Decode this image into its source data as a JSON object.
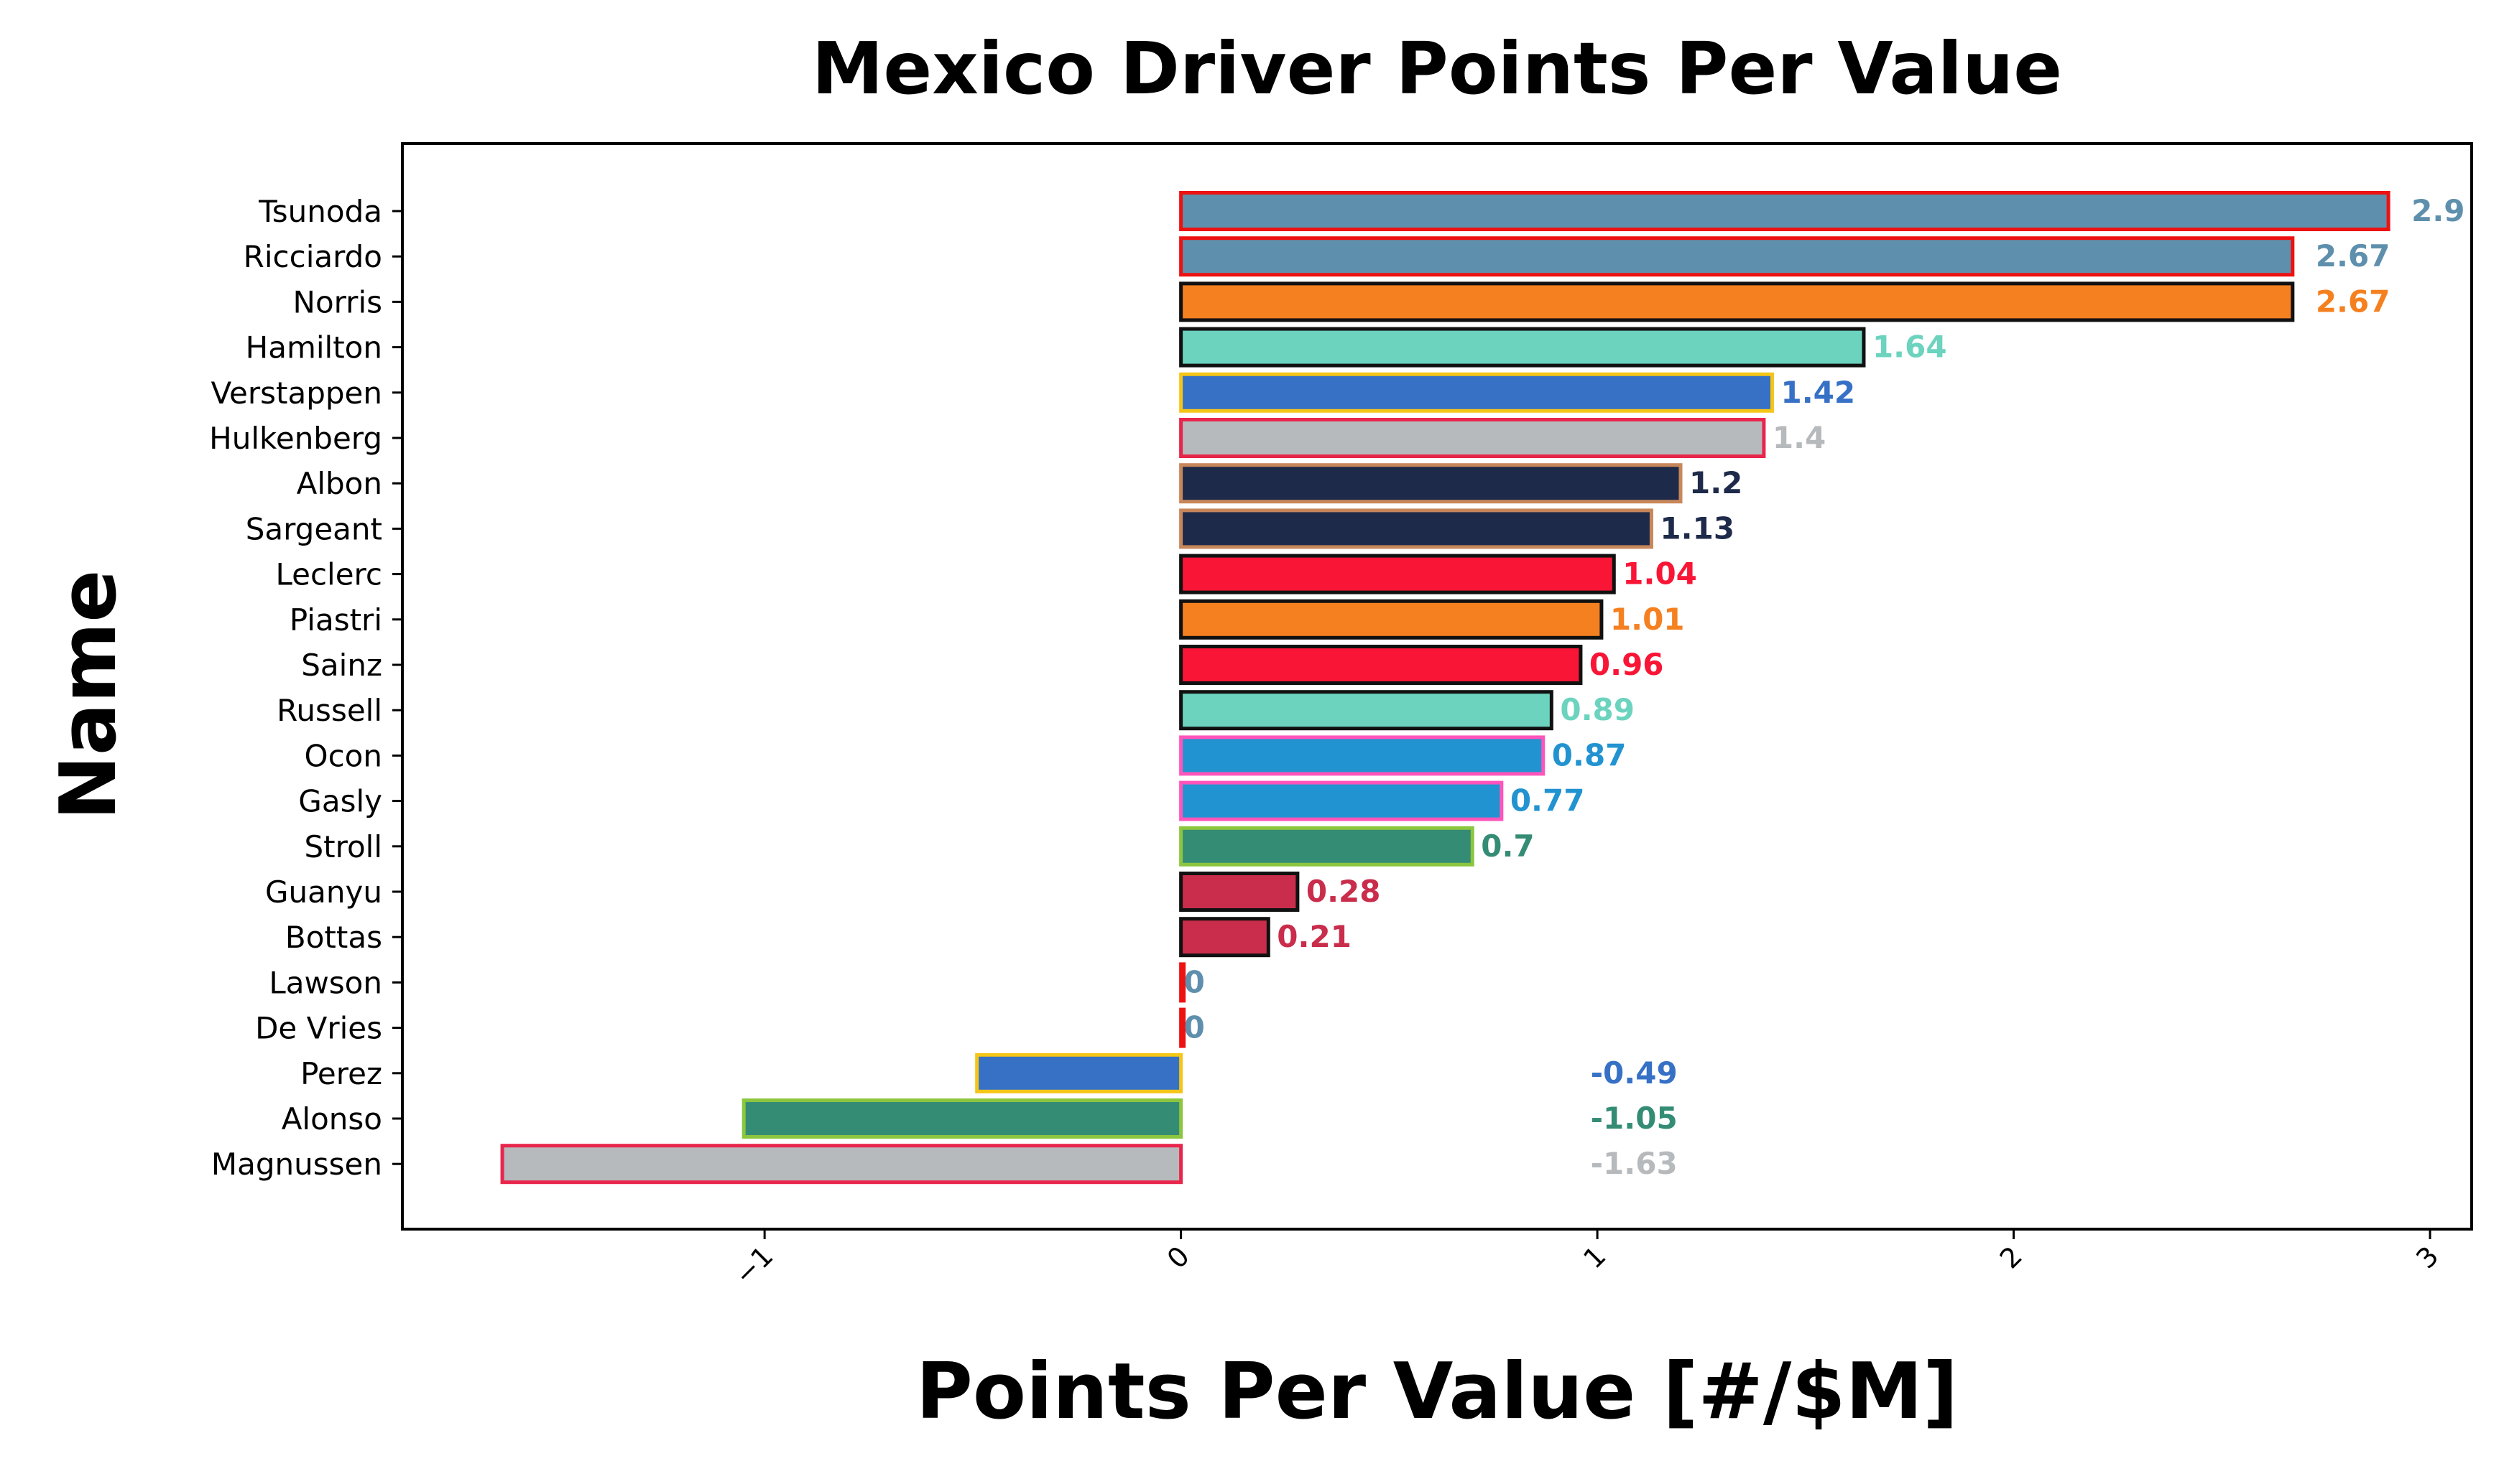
{
  "chart_data": {
    "type": "bar",
    "orientation": "horizontal",
    "title": "Mexico Driver Points Per Value",
    "xlabel": "Points Per Value [#/$M]",
    "ylabel": "Name",
    "xlim": [
      -1.87,
      3.1
    ],
    "xticks": [
      -1,
      0,
      1,
      2,
      3
    ],
    "xtick_labels": [
      "−1",
      "0",
      "1",
      "2",
      "3"
    ],
    "grid": false,
    "legend": "none",
    "categories": [
      "Tsunoda",
      "Ricciardo",
      "Norris",
      "Hamilton",
      "Verstappen",
      "Hulkenberg",
      "Albon",
      "Sargeant",
      "Leclerc",
      "Piastri",
      "Sainz",
      "Russell",
      "Ocon",
      "Gasly",
      "Stroll",
      "Guanyu",
      "Bottas",
      "Lawson",
      "De Vries",
      "Perez",
      "Alonso",
      "Magnussen"
    ],
    "values": [
      2.9,
      2.67,
      2.67,
      1.64,
      1.42,
      1.4,
      1.2,
      1.13,
      1.04,
      1.01,
      0.96,
      0.89,
      0.87,
      0.77,
      0.7,
      0.28,
      0.21,
      0,
      0,
      -0.49,
      -1.05,
      -1.63
    ],
    "value_labels": [
      "2.9",
      "2.67",
      "2.67",
      "1.64",
      "1.42",
      "1.4",
      "1.2",
      "1.13",
      "1.04",
      "1.01",
      "0.96",
      "0.89",
      "0.87",
      "0.77",
      "0.7",
      "0.28",
      "0.21",
      "0",
      "0",
      "-0.49",
      "-1.05",
      "-1.63"
    ],
    "fill_colors": [
      "#5e8fad",
      "#5e8fad",
      "#f58020",
      "#6cd3bf",
      "#3671c6",
      "#b6babd",
      "#1e2a4a",
      "#1e2a4a",
      "#f91536",
      "#f58020",
      "#f91536",
      "#6cd3bf",
      "#2293d1",
      "#2293d1",
      "#358c75",
      "#c92d4b",
      "#c92d4b",
      "#5e8fad",
      "#5e8fad",
      "#3671c6",
      "#358c75",
      "#b6babd"
    ],
    "edge_colors": [
      "#ee1111",
      "#ee1111",
      "#111111",
      "#111111",
      "#f5c518",
      "#e8254b",
      "#c8875a",
      "#c8875a",
      "#111111",
      "#111111",
      "#111111",
      "#111111",
      "#ff55bb",
      "#ff55bb",
      "#8cc63f",
      "#111111",
      "#111111",
      "#ee1111",
      "#ee1111",
      "#f5c518",
      "#8cc63f",
      "#e8254b"
    ],
    "label_colors": [
      "#5e8fad",
      "#5e8fad",
      "#f58020",
      "#6cd3bf",
      "#3671c6",
      "#b6babd",
      "#1e2a4a",
      "#1e2a4a",
      "#f91536",
      "#f58020",
      "#f91536",
      "#6cd3bf",
      "#2293d1",
      "#2293d1",
      "#358c75",
      "#c92d4b",
      "#c92d4b",
      "#5e8fad",
      "#5e8fad",
      "#3671c6",
      "#358c75",
      "#b6babd"
    ]
  }
}
